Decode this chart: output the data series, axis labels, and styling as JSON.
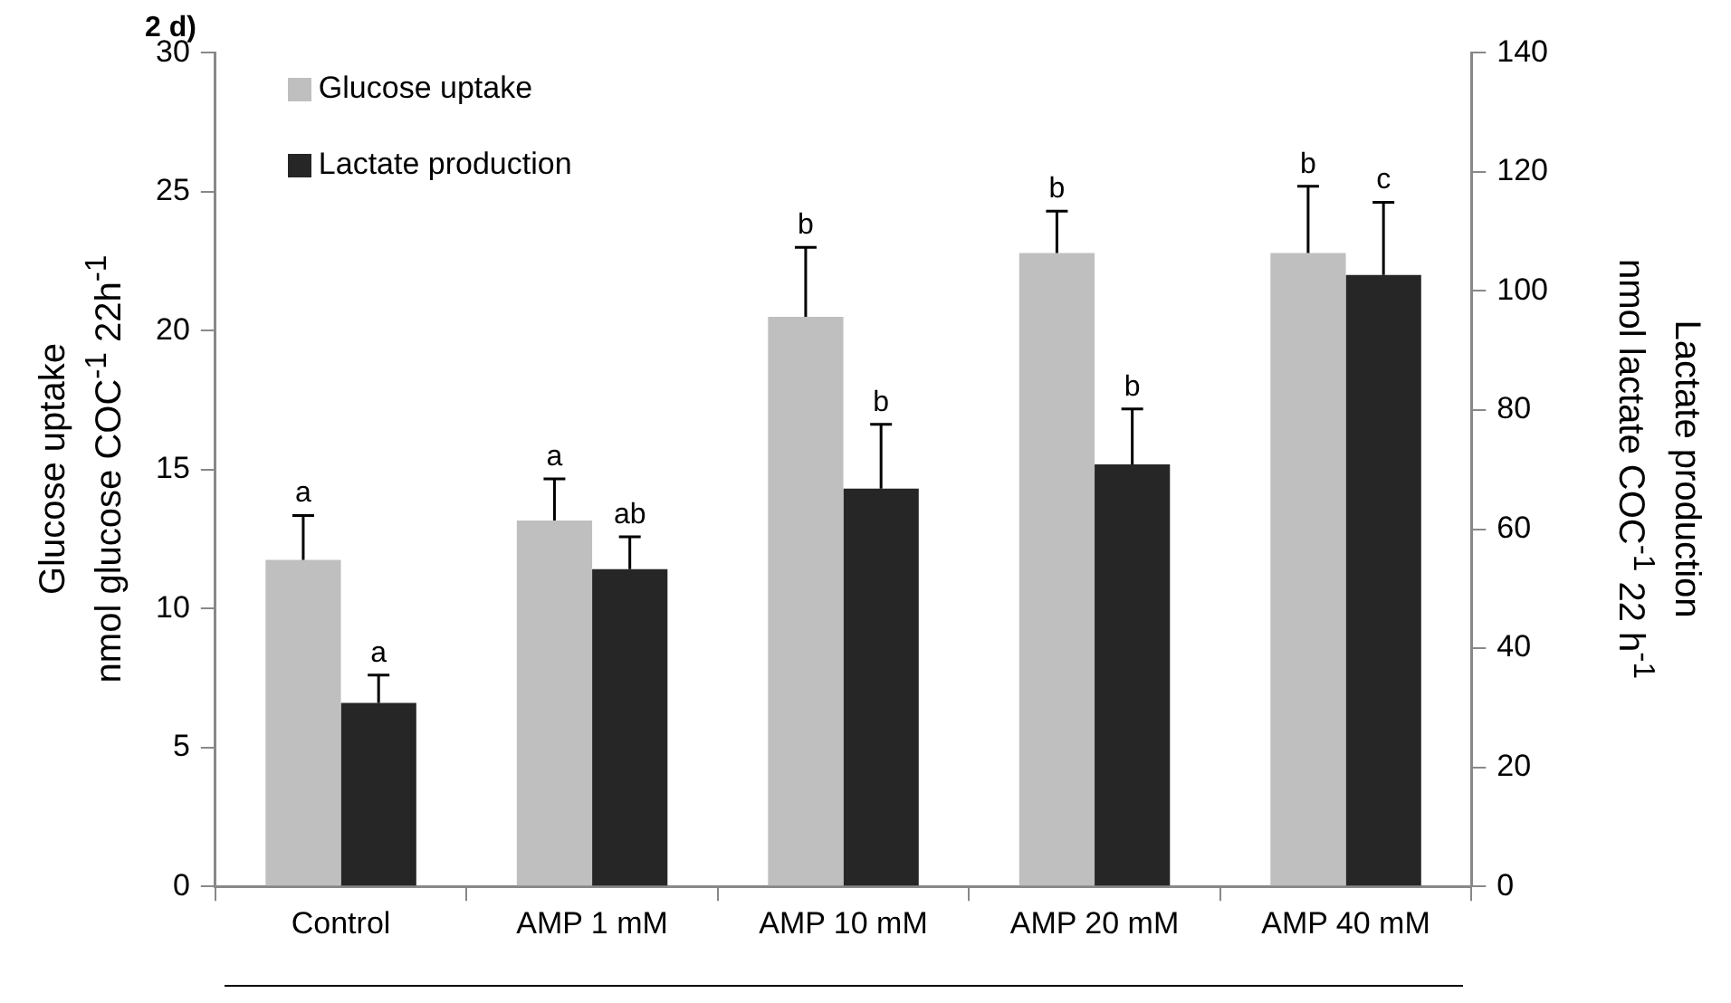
{
  "chart_data": {
    "type": "bar",
    "title": "2 d)",
    "categories": [
      "Control",
      "AMP 1 mM",
      "AMP 10 mM",
      "AMP 20 mM",
      "AMP 40 mM"
    ],
    "series": [
      {
        "name": "Glucose uptake",
        "color": "#bfbfbf",
        "values": [
          11.75,
          13.17,
          20.5,
          22.8,
          22.8
        ],
        "errors": [
          1.6,
          1.5,
          2.5,
          1.5,
          2.4
        ],
        "value_labels": [
          "a",
          "a",
          "b",
          "b",
          "b"
        ]
      },
      {
        "name": "Lactate production",
        "color": "#262626",
        "axis": "y2",
        "values": [
          30.8,
          53.3,
          66.8,
          70.9,
          102.7
        ],
        "errors": [
          4.7,
          5.4,
          10.8,
          9.3,
          12.2
        ],
        "value_labels": [
          "a",
          "ab",
          "b",
          "b",
          "c"
        ]
      }
    ],
    "ylabel": "Glucose uptake\nnmol glucose COC$^{-1}$ 22h$^{-1}$",
    "y2label": "Lactate production\nnmol lactate COC$^{-1}$ 22 h$^{-1}$",
    "ylim": [
      0,
      30
    ],
    "yticks": [
      0,
      5,
      10,
      15,
      20,
      25,
      30
    ],
    "y2lim": [
      0,
      140
    ],
    "y2ticks": [
      0,
      20,
      40,
      60,
      80,
      100,
      120,
      140
    ],
    "grid": false,
    "legend": "top left"
  }
}
